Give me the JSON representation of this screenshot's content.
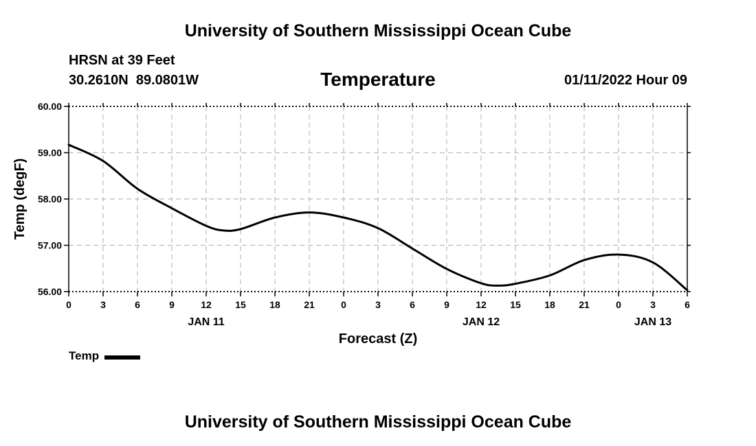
{
  "header": {
    "top_title": "University of Southern Mississippi Ocean Cube",
    "bottom_title": "University of Southern Mississippi Ocean Cube",
    "station": "HRSN at 39 Feet",
    "coords": "30.2610N  89.0801W",
    "datetime": "01/11/2022 Hour 09"
  },
  "chart_data": {
    "type": "line",
    "title": "Temperature",
    "xlabel": "Forecast (Z)",
    "ylabel": "Temp (degF)",
    "ylim": [
      56.0,
      60.0
    ],
    "xlim": [
      0,
      54
    ],
    "grid": true,
    "y_ticks": [
      "56.00",
      "57.00",
      "58.00",
      "59.00",
      "60.00"
    ],
    "x_ticks": [
      "0",
      "3",
      "6",
      "9",
      "12",
      "15",
      "18",
      "21",
      "0",
      "3",
      "6",
      "9",
      "12",
      "15",
      "18",
      "21",
      "0",
      "3",
      "6"
    ],
    "date_labels": [
      {
        "label": "JAN 11",
        "hour": 12
      },
      {
        "label": "JAN 12",
        "hour": 36
      },
      {
        "label": "JAN 13",
        "hour": 51
      }
    ],
    "series": [
      {
        "name": "Temp",
        "x": [
          0,
          3,
          6,
          9,
          12,
          13.5,
          15,
          18,
          21,
          24,
          27,
          30,
          33,
          36,
          37.5,
          39,
          42,
          45,
          48,
          51,
          54
        ],
        "values": [
          59.17,
          58.82,
          58.22,
          57.8,
          57.42,
          57.32,
          57.35,
          57.6,
          57.71,
          57.6,
          57.37,
          56.93,
          56.49,
          56.18,
          56.13,
          56.17,
          56.35,
          56.68,
          56.8,
          56.63,
          56.03
        ]
      }
    ],
    "legend": {
      "label": "Temp",
      "placement": "bottom-left"
    }
  }
}
